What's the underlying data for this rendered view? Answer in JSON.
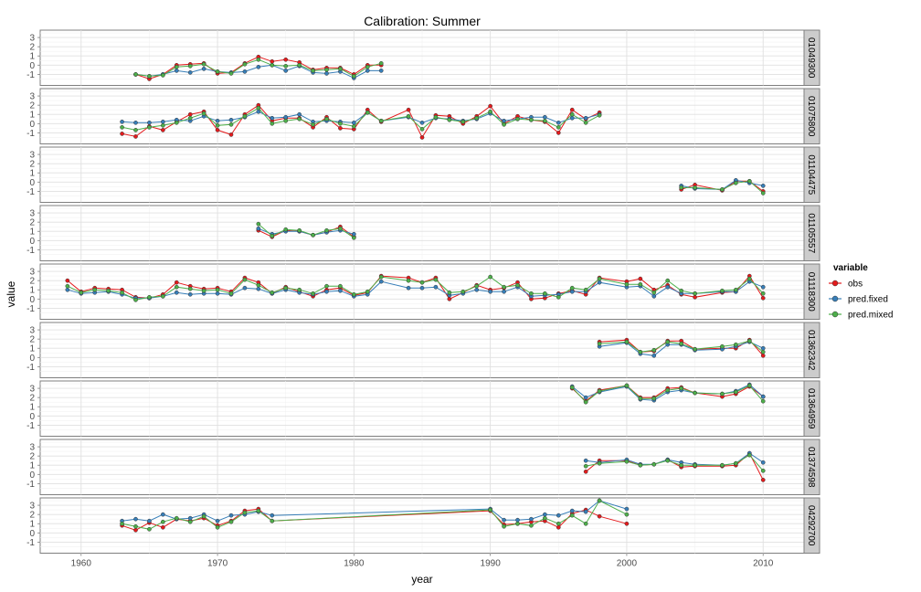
{
  "chart_data": {
    "type": "line",
    "title": "Calibration: Summer",
    "xlabel": "year",
    "ylabel": "value",
    "xlim": [
      1957,
      2013
    ],
    "ylim": [
      -2.2,
      3.8
    ],
    "x_ticks": [
      1960,
      1970,
      1980,
      1990,
      2000,
      2010
    ],
    "y_ticks": [
      -1,
      0,
      1,
      2,
      3
    ],
    "grid": true,
    "legend_position": "right",
    "legend": {
      "title": "variable",
      "items": [
        {
          "name": "obs",
          "color": "#E41A1C"
        },
        {
          "name": "pred.fixed",
          "color": "#377EB8"
        },
        {
          "name": "pred.mixed",
          "color": "#4DAF4A"
        }
      ]
    },
    "panels": [
      {
        "label": "01049300",
        "x": [
          1964,
          1965,
          1966,
          1967,
          1968,
          1969,
          1970,
          1971,
          1972,
          1973,
          1974,
          1975,
          1976,
          1977,
          1978,
          1979,
          1980,
          1981,
          1982
        ],
        "series": [
          {
            "name": "obs",
            "values": [
              -1.0,
              -1.5,
              -1.0,
              0.0,
              0.1,
              0.2,
              -0.9,
              -0.8,
              0.2,
              0.9,
              0.4,
              0.6,
              0.3,
              -0.5,
              -0.3,
              -0.3,
              -1.0,
              0.0,
              0.0
            ]
          },
          {
            "name": "pred.fixed",
            "values": [
              -1.0,
              -1.2,
              -1.0,
              -0.6,
              -0.8,
              -0.4,
              -0.7,
              -0.8,
              -0.7,
              -0.2,
              0.0,
              -0.6,
              -0.1,
              -0.8,
              -0.9,
              -0.7,
              -1.4,
              -0.6,
              -0.6
            ]
          },
          {
            "name": "pred.mixed",
            "values": [
              -1.0,
              -1.2,
              -1.1,
              -0.2,
              -0.1,
              0.1,
              -0.7,
              -0.9,
              0.1,
              0.6,
              0.0,
              -0.1,
              0.0,
              -0.6,
              -0.5,
              -0.4,
              -1.2,
              -0.2,
              0.2
            ]
          }
        ]
      },
      {
        "label": "01075800",
        "x": [
          1963,
          1964,
          1965,
          1966,
          1967,
          1968,
          1969,
          1970,
          1971,
          1972,
          1973,
          1974,
          1975,
          1976,
          1977,
          1978,
          1979,
          1980,
          1981,
          1982,
          1984,
          1985,
          1986,
          1987,
          1988,
          1989,
          1990,
          1991,
          1992,
          1993,
          1994,
          1995,
          1996,
          1997,
          1998
        ],
        "series": [
          {
            "name": "obs",
            "values": [
              -1.1,
              -1.4,
              -0.3,
              -0.7,
              0.2,
              1.0,
              1.3,
              -0.7,
              -1.2,
              1.0,
              2.0,
              0.3,
              0.6,
              0.6,
              -0.4,
              0.7,
              -0.5,
              -0.6,
              1.5,
              0.2,
              1.5,
              -1.5,
              0.9,
              0.8,
              0.0,
              0.8,
              1.9,
              0.0,
              0.8,
              0.4,
              0.2,
              -1.0,
              1.5,
              0.5,
              1.2
            ]
          },
          {
            "name": "pred.fixed",
            "values": [
              0.2,
              0.1,
              0.1,
              0.2,
              0.4,
              0.3,
              0.8,
              0.3,
              0.4,
              0.7,
              1.3,
              0.6,
              0.7,
              1.0,
              0.2,
              0.3,
              0.2,
              0.1,
              1.2,
              0.3,
              0.7,
              0.1,
              0.6,
              0.5,
              0.3,
              0.5,
              1.1,
              0.3,
              0.5,
              0.7,
              0.7,
              0.1,
              0.6,
              0.6,
              1.0
            ]
          },
          {
            "name": "pred.mixed",
            "values": [
              -0.4,
              -0.7,
              -0.4,
              -0.2,
              0.1,
              0.6,
              1.1,
              -0.2,
              -0.1,
              0.8,
              1.7,
              0.0,
              0.3,
              0.5,
              -0.1,
              0.5,
              0.0,
              -0.3,
              1.2,
              0.3,
              0.8,
              -0.6,
              0.7,
              0.4,
              0.2,
              0.6,
              1.3,
              -0.1,
              0.5,
              0.4,
              0.3,
              -0.4,
              1.0,
              0.1,
              0.9
            ]
          }
        ]
      },
      {
        "label": "01104475",
        "x": [
          2004,
          2005,
          2007,
          2008,
          2009,
          2010
        ],
        "series": [
          {
            "name": "obs",
            "values": [
              -0.8,
              -0.3,
              -0.9,
              0.1,
              0.1,
              -1.0
            ]
          },
          {
            "name": "pred.fixed",
            "values": [
              -0.4,
              -0.7,
              -0.8,
              0.2,
              -0.1,
              -0.4
            ]
          },
          {
            "name": "pred.mixed",
            "values": [
              -0.6,
              -0.6,
              -0.8,
              -0.1,
              0.1,
              -1.2
            ]
          }
        ]
      },
      {
        "label": "01105557",
        "x": [
          1973,
          1974,
          1975,
          1976,
          1977,
          1978,
          1979,
          1980
        ],
        "series": [
          {
            "name": "obs",
            "values": [
              1.1,
              0.4,
              1.1,
              1.0,
              0.6,
              0.9,
              1.5,
              0.4
            ]
          },
          {
            "name": "pred.fixed",
            "values": [
              1.3,
              0.7,
              1.0,
              1.0,
              0.6,
              0.9,
              1.1,
              0.7
            ]
          },
          {
            "name": "pred.mixed",
            "values": [
              1.8,
              0.5,
              1.2,
              1.1,
              0.6,
              1.1,
              1.3,
              0.3
            ]
          }
        ]
      },
      {
        "label": "01118300",
        "x": [
          1959,
          1960,
          1961,
          1962,
          1963,
          1964,
          1965,
          1966,
          1967,
          1968,
          1969,
          1970,
          1971,
          1972,
          1973,
          1974,
          1975,
          1976,
          1977,
          1978,
          1979,
          1980,
          1981,
          1982,
          1984,
          1985,
          1986,
          1987,
          1988,
          1989,
          1990,
          1991,
          1992,
          1993,
          1994,
          1995,
          1996,
          1997,
          1998,
          2000,
          2001,
          2002,
          2003,
          2004,
          2005,
          2007,
          2008,
          2009,
          2010
        ],
        "series": [
          {
            "name": "obs",
            "values": [
              2.0,
              0.8,
              1.2,
              1.1,
              1.0,
              0.2,
              0.1,
              0.5,
              1.8,
              1.4,
              1.1,
              1.2,
              0.8,
              2.3,
              1.8,
              0.6,
              1.3,
              0.8,
              0.3,
              1.0,
              1.2,
              0.4,
              0.7,
              2.5,
              2.3,
              1.8,
              2.3,
              0.0,
              0.7,
              1.5,
              1.0,
              1.2,
              1.8,
              0.0,
              0.1,
              0.6,
              0.9,
              0.5,
              2.3,
              1.9,
              2.2,
              1.0,
              1.5,
              0.5,
              0.2,
              0.7,
              0.8,
              2.5,
              0.1
            ]
          },
          {
            "name": "pred.fixed",
            "values": [
              1.0,
              0.6,
              0.7,
              0.8,
              0.5,
              0.1,
              0.1,
              0.3,
              0.7,
              0.5,
              0.6,
              0.6,
              0.5,
              1.2,
              1.1,
              0.6,
              1.0,
              0.7,
              0.5,
              0.8,
              0.9,
              0.3,
              0.5,
              1.9,
              1.2,
              1.2,
              1.3,
              0.4,
              0.6,
              1.0,
              0.8,
              0.8,
              1.3,
              0.3,
              0.4,
              0.5,
              0.8,
              0.8,
              1.8,
              1.3,
              1.4,
              0.3,
              1.3,
              0.6,
              0.6,
              0.8,
              0.8,
              1.9,
              1.3
            ]
          },
          {
            "name": "pred.mixed",
            "values": [
              1.4,
              0.7,
              1.0,
              0.9,
              0.7,
              -0.1,
              0.2,
              0.3,
              1.3,
              1.1,
              0.9,
              1.0,
              0.6,
              2.1,
              1.5,
              0.7,
              1.2,
              1.0,
              0.6,
              1.4,
              1.4,
              0.5,
              0.8,
              2.4,
              2.0,
              1.8,
              2.1,
              0.7,
              0.8,
              1.4,
              2.4,
              1.3,
              1.5,
              0.6,
              0.6,
              0.2,
              1.2,
              1.0,
              2.2,
              1.6,
              1.6,
              0.7,
              2.0,
              0.9,
              0.6,
              0.9,
              1.0,
              2.2,
              0.6
            ]
          }
        ]
      },
      {
        "label": "01362342",
        "x": [
          1998,
          2000,
          2001,
          2002,
          2003,
          2004,
          2005,
          2007,
          2008,
          2009,
          2010
        ],
        "series": [
          {
            "name": "obs",
            "values": [
              1.7,
              1.9,
              0.6,
              0.7,
              1.8,
              1.8,
              0.9,
              1.0,
              1.0,
              1.9,
              0.2
            ]
          },
          {
            "name": "pred.fixed",
            "values": [
              1.2,
              1.6,
              0.4,
              0.2,
              1.4,
              1.4,
              0.8,
              0.9,
              1.2,
              1.7,
              1.0
            ]
          },
          {
            "name": "pred.mixed",
            "values": [
              1.5,
              1.7,
              0.6,
              0.8,
              1.7,
              1.5,
              0.9,
              1.2,
              1.4,
              1.8,
              0.6
            ]
          }
        ]
      },
      {
        "label": "01364959",
        "x": [
          1996,
          1997,
          1998,
          2000,
          2001,
          2002,
          2003,
          2004,
          2005,
          2007,
          2008,
          2009,
          2010
        ],
        "series": [
          {
            "name": "obs",
            "values": [
              3.0,
              1.6,
              2.8,
              3.3,
              2.0,
              2.0,
              3.0,
              3.1,
              2.5,
              2.1,
              2.4,
              3.2,
              2.1
            ]
          },
          {
            "name": "pred.fixed",
            "values": [
              3.2,
              2.0,
              2.6,
              3.2,
              1.8,
              1.7,
              2.6,
              2.8,
              2.5,
              2.4,
              2.7,
              3.4,
              2.1
            ]
          },
          {
            "name": "pred.mixed",
            "values": [
              3.1,
              1.5,
              2.7,
              3.3,
              1.9,
              1.9,
              2.8,
              3.0,
              2.5,
              2.4,
              2.6,
              3.3,
              1.6
            ]
          }
        ]
      },
      {
        "label": "01374598",
        "x": [
          1997,
          1998,
          2000,
          2001,
          2002,
          2003,
          2004,
          2005,
          2007,
          2008,
          2009,
          2010
        ],
        "series": [
          {
            "name": "obs",
            "values": [
              0.3,
              1.5,
              1.5,
              1.0,
              1.1,
              1.6,
              0.8,
              0.9,
              0.9,
              1.0,
              2.3,
              -0.6
            ]
          },
          {
            "name": "pred.fixed",
            "values": [
              1.5,
              1.3,
              1.6,
              1.1,
              1.1,
              1.6,
              1.3,
              1.1,
              1.0,
              1.2,
              2.3,
              1.3
            ]
          },
          {
            "name": "pred.mixed",
            "values": [
              0.9,
              1.2,
              1.4,
              1.0,
              1.1,
              1.5,
              1.0,
              1.0,
              1.0,
              1.2,
              2.1,
              0.4
            ]
          }
        ]
      },
      {
        "label": "04292700",
        "x": [
          1963,
          1964,
          1965,
          1966,
          1967,
          1968,
          1969,
          1970,
          1971,
          1972,
          1973,
          1974,
          1990,
          1991,
          1992,
          1993,
          1994,
          1995,
          1996,
          1997,
          1998,
          2000
        ],
        "series": [
          {
            "name": "obs",
            "values": [
              0.8,
              0.3,
              1.1,
              0.6,
              1.5,
              1.3,
              1.6,
              0.8,
              1.3,
              2.4,
              2.6,
              1.3,
              2.4,
              0.9,
              1.0,
              1.2,
              1.3,
              0.6,
              2.1,
              2.5,
              1.8,
              1.0
            ]
          },
          {
            "name": "pred.fixed",
            "values": [
              1.3,
              1.5,
              1.3,
              2.0,
              1.5,
              1.6,
              2.0,
              1.3,
              1.9,
              2.0,
              2.3,
              1.9,
              2.6,
              1.4,
              1.4,
              1.5,
              2.0,
              1.9,
              2.4,
              2.3,
              3.5,
              2.6
            ]
          },
          {
            "name": "pred.mixed",
            "values": [
              1.0,
              0.7,
              0.4,
              1.2,
              1.6,
              1.2,
              1.8,
              0.6,
              1.2,
              2.2,
              2.4,
              1.3,
              2.5,
              0.7,
              1.0,
              0.8,
              1.6,
              1.0,
              1.9,
              1.0,
              3.5,
              2.0
            ]
          }
        ]
      }
    ]
  }
}
